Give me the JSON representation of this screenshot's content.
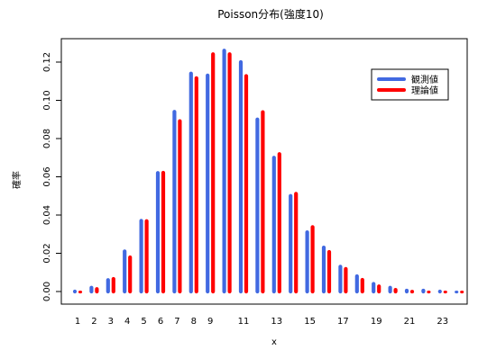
{
  "chart_data": {
    "type": "bar",
    "title": "Poisson分布(強度10)",
    "xlabel": "x",
    "ylabel": "確率",
    "x": [
      1,
      2,
      3,
      4,
      5,
      6,
      7,
      8,
      9,
      10,
      11,
      12,
      13,
      14,
      15,
      16,
      17,
      18,
      19,
      20,
      21,
      22,
      23,
      24
    ],
    "x_tick_labels": [
      "1",
      "2",
      "3",
      "4",
      "5",
      "6",
      "7",
      "8",
      "9",
      "11",
      "13",
      "15",
      "17",
      "19",
      "21",
      "23"
    ],
    "x_tick_values": [
      1,
      2,
      3,
      4,
      5,
      6,
      7,
      8,
      9,
      11,
      13,
      15,
      17,
      19,
      21,
      23
    ],
    "y_ticks": [
      0.0,
      0.02,
      0.04,
      0.06,
      0.08,
      0.1,
      0.12
    ],
    "y_tick_labels": [
      "0.00",
      "0.02",
      "0.04",
      "0.06",
      "0.08",
      "0.10",
      "0.12"
    ],
    "ylim": [
      0,
      0.13
    ],
    "series": [
      {
        "name": "観測値",
        "color": "#4169E1",
        "values": [
          0.001,
          0.003,
          0.007,
          0.022,
          0.038,
          0.063,
          0.095,
          0.115,
          0.114,
          0.127,
          0.121,
          0.091,
          0.071,
          0.051,
          0.032,
          0.024,
          0.014,
          0.009,
          0.005,
          0.003,
          0.0015,
          0.0015,
          0.001,
          0.0005
        ]
      },
      {
        "name": "理論値",
        "color": "#FF0000",
        "values": [
          0.0005,
          0.0023,
          0.0076,
          0.0189,
          0.0378,
          0.0631,
          0.0901,
          0.1126,
          0.1251,
          0.1251,
          0.1137,
          0.0948,
          0.0729,
          0.0521,
          0.0347,
          0.0217,
          0.0128,
          0.0071,
          0.0037,
          0.0019,
          0.0009,
          0.0004,
          0.0002,
          0.0001
        ]
      }
    ],
    "legend_position": "top-right",
    "grid": false
  }
}
